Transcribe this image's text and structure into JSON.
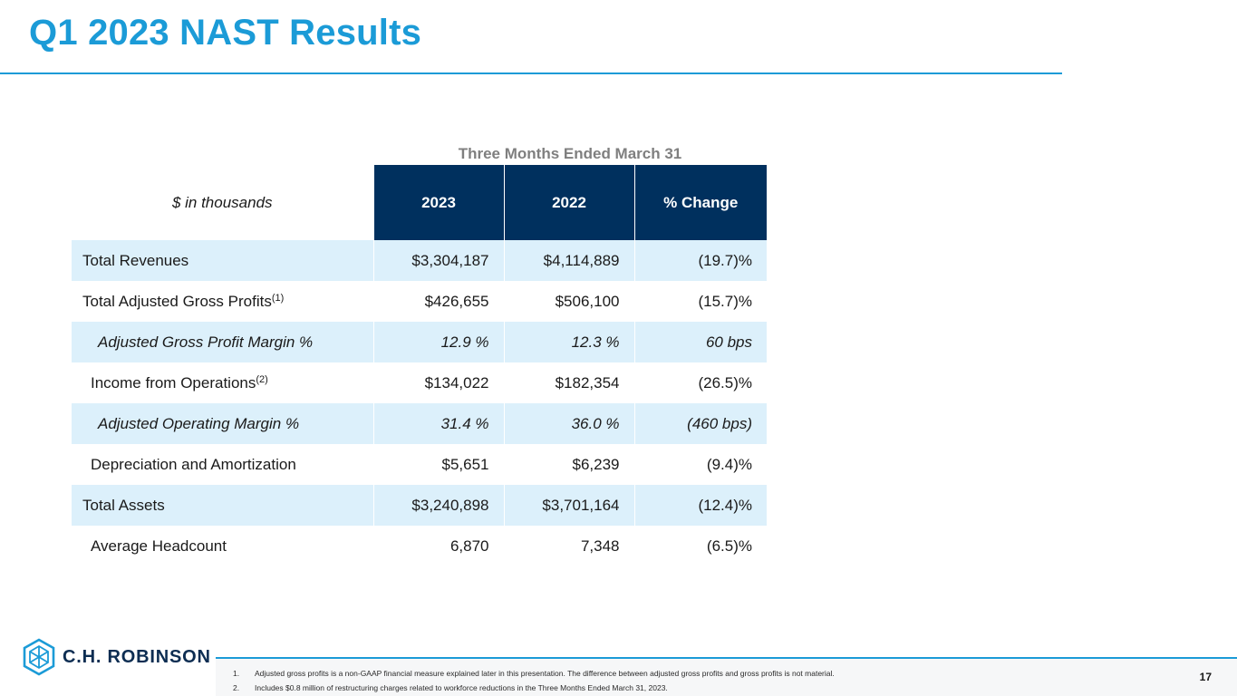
{
  "slide": {
    "title": "Q1 2023 NAST Results",
    "page_number": "17"
  },
  "table": {
    "period_header": "Three Months Ended March 31",
    "units_label": "$ in thousands",
    "columns": [
      "2023",
      "2022",
      "% Change"
    ],
    "rows": [
      {
        "label": "Total Revenues",
        "sup": "",
        "v2023": "$3,304,187",
        "v2022": "$4,114,889",
        "change": "(19.7)%"
      },
      {
        "label": "Total Adjusted Gross Profits",
        "sup": "(1)",
        "v2023": "$426,655",
        "v2022": "$506,100",
        "change": "(15.7)%"
      },
      {
        "label": "Adjusted Gross Profit Margin %",
        "sup": "",
        "v2023": "12.9 %",
        "v2022": "12.3 %",
        "change": "60 bps"
      },
      {
        "label": "Income from Operations",
        "sup": "(2)",
        "v2023": "$134,022",
        "v2022": "$182,354",
        "change": "(26.5)%"
      },
      {
        "label": "Adjusted Operating Margin %",
        "sup": "",
        "v2023": "31.4 %",
        "v2022": "36.0 %",
        "change": "(460 bps)"
      },
      {
        "label": "Depreciation and Amortization",
        "sup": "",
        "v2023": "$5,651",
        "v2022": "$6,239",
        "change": "(9.4)%"
      },
      {
        "label": "Total Assets",
        "sup": "",
        "v2023": "$3,240,898",
        "v2022": "$3,701,164",
        "change": "(12.4)%"
      },
      {
        "label": "Average Headcount",
        "sup": "",
        "v2023": "6,870",
        "v2022": "7,348",
        "change": "(6.5)%"
      }
    ]
  },
  "footer": {
    "logo_text": "C.H. ROBINSON",
    "logo_icon": "cube-logo-icon",
    "footnotes": [
      {
        "num": "1.",
        "text": "Adjusted gross profits is a non-GAAP financial measure explained later in this presentation. The difference between adjusted gross profits and gross profits is not material."
      },
      {
        "num": "2.",
        "text": "Includes $0.8 million of restructuring charges related to workforce reductions in the Three Months Ended March 31, 2023."
      }
    ]
  },
  "colors": {
    "accent": "#1b9bd7",
    "header_navy": "#00305e",
    "row_shade": "#dcf0fb"
  }
}
